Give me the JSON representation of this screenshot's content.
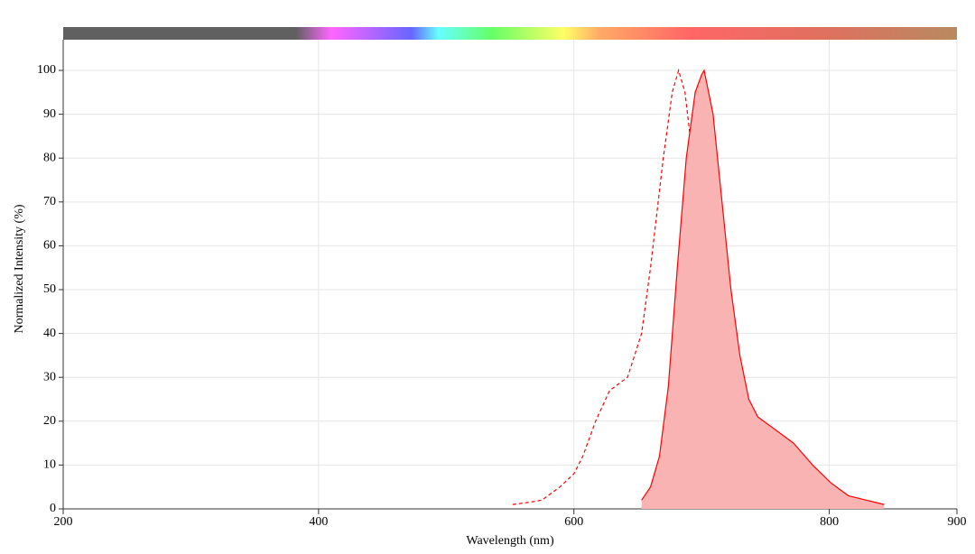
{
  "chart_data": {
    "type": "line",
    "x_label": "Wavelength (nm)",
    "y_label": "Normalized Intensity (%)",
    "xlim": [
      200,
      900
    ],
    "xticks": [
      200,
      400,
      600,
      800,
      900
    ],
    "ylim": [
      0,
      107
    ],
    "yticks": [
      0,
      10,
      20,
      30,
      40,
      50,
      60,
      70,
      80,
      90,
      100
    ],
    "grid": true,
    "series": [
      {
        "color": "#ff0000",
        "dashed": true,
        "x": [
          552,
          565,
          575,
          589,
          600,
          607,
          617,
          628,
          642,
          653,
          660,
          670,
          677,
          682,
          687,
          695,
          702,
          709,
          716,
          727,
          737
        ],
        "values": [
          1,
          1.5,
          2,
          5,
          8,
          12,
          20,
          27,
          30,
          40,
          55,
          80,
          95,
          100,
          95,
          75,
          50,
          25,
          10,
          3,
          1
        ]
      },
      {
        "color": "#ff0000",
        "fill": "#f9b3b3",
        "x": [
          653,
          660,
          667,
          674,
          681,
          688,
          695,
          700,
          702,
          709,
          716,
          723,
          730,
          737,
          744,
          758,
          772,
          787,
          801,
          815,
          829,
          843
        ],
        "values": [
          2,
          5,
          12,
          28,
          55,
          80,
          95,
          99,
          100,
          90,
          70,
          50,
          35,
          25,
          21,
          18,
          15,
          10,
          6,
          3,
          2,
          1
        ]
      }
    ]
  }
}
